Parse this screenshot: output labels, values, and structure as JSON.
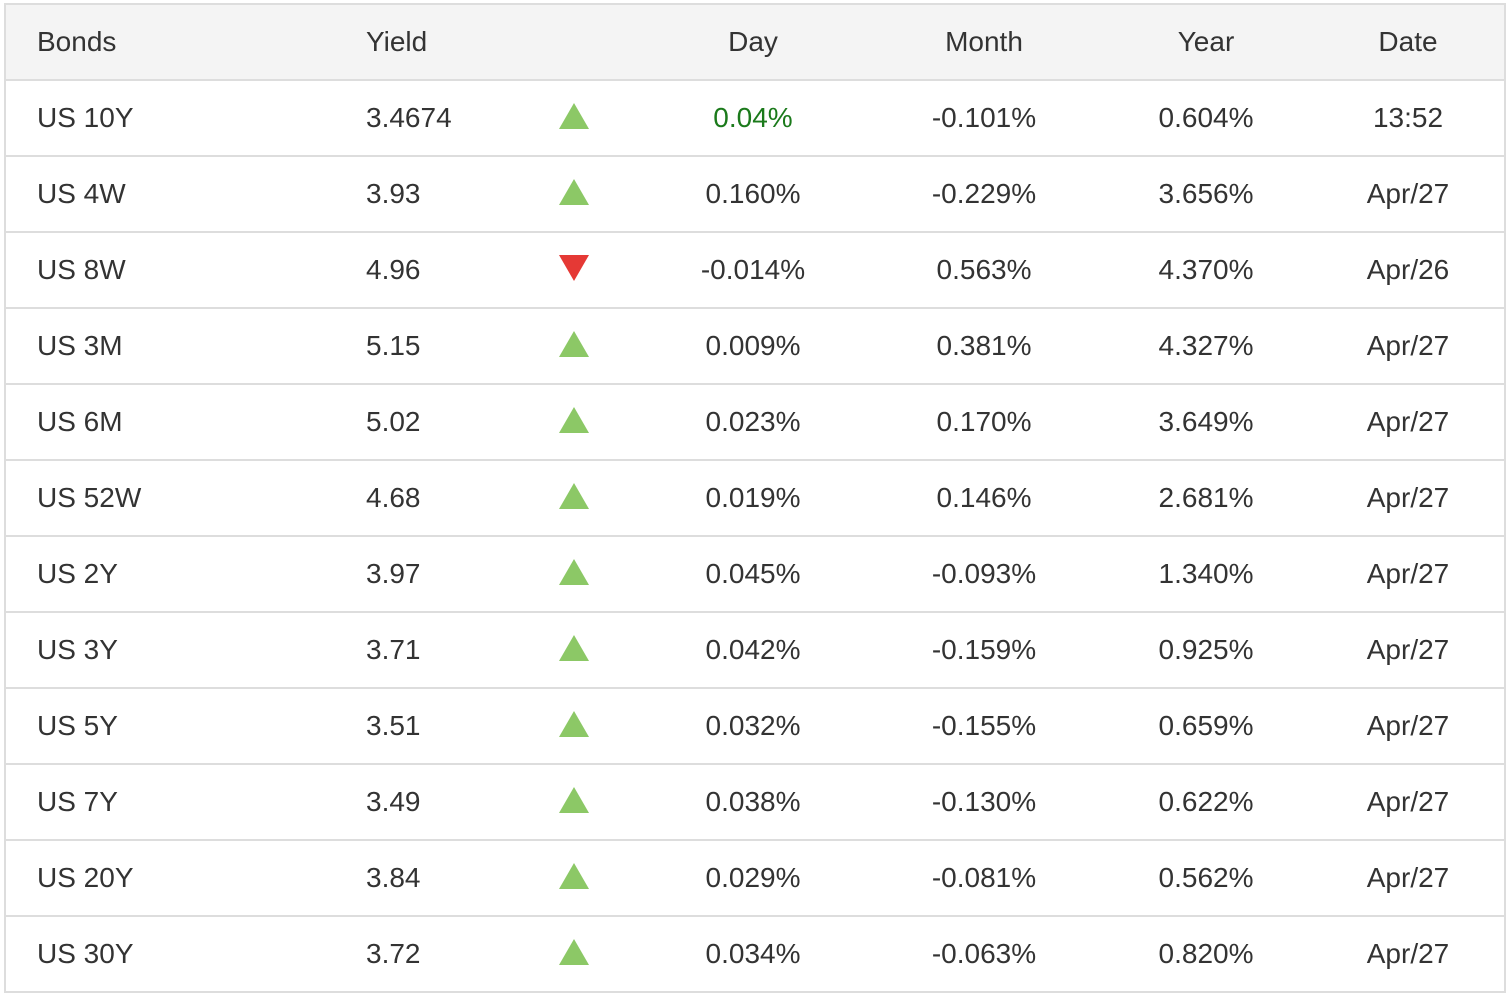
{
  "headers": {
    "bonds": "Bonds",
    "yield": "Yield",
    "day": "Day",
    "month": "Month",
    "year": "Year",
    "date": "Date"
  },
  "colors": {
    "up": "#8cc866",
    "down": "#e53935",
    "highlight_text": "#1b7a1b"
  },
  "rows": [
    {
      "bond": "US 10Y",
      "yield": "3.4674",
      "direction": "up",
      "day": "0.04%",
      "month": "-0.101%",
      "year": "0.604%",
      "date": "13:52"
    },
    {
      "bond": "US 4W",
      "yield": "3.93",
      "direction": "up",
      "day": "0.160%",
      "month": "-0.229%",
      "year": "3.656%",
      "date": "Apr/27"
    },
    {
      "bond": "US 8W",
      "yield": "4.96",
      "direction": "down",
      "day": "-0.014%",
      "month": "0.563%",
      "year": "4.370%",
      "date": "Apr/26"
    },
    {
      "bond": "US 3M",
      "yield": "5.15",
      "direction": "up",
      "day": "0.009%",
      "month": "0.381%",
      "year": "4.327%",
      "date": "Apr/27"
    },
    {
      "bond": "US 6M",
      "yield": "5.02",
      "direction": "up",
      "day": "0.023%",
      "month": "0.170%",
      "year": "3.649%",
      "date": "Apr/27"
    },
    {
      "bond": "US 52W",
      "yield": "4.68",
      "direction": "up",
      "day": "0.019%",
      "month": "0.146%",
      "year": "2.681%",
      "date": "Apr/27"
    },
    {
      "bond": "US 2Y",
      "yield": "3.97",
      "direction": "up",
      "day": "0.045%",
      "month": "-0.093%",
      "year": "1.340%",
      "date": "Apr/27"
    },
    {
      "bond": "US 3Y",
      "yield": "3.71",
      "direction": "up",
      "day": "0.042%",
      "month": "-0.159%",
      "year": "0.925%",
      "date": "Apr/27"
    },
    {
      "bond": "US 5Y",
      "yield": "3.51",
      "direction": "up",
      "day": "0.032%",
      "month": "-0.155%",
      "year": "0.659%",
      "date": "Apr/27"
    },
    {
      "bond": "US 7Y",
      "yield": "3.49",
      "direction": "up",
      "day": "0.038%",
      "month": "-0.130%",
      "year": "0.622%",
      "date": "Apr/27"
    },
    {
      "bond": "US 20Y",
      "yield": "3.84",
      "direction": "up",
      "day": "0.029%",
      "month": "-0.081%",
      "year": "0.562%",
      "date": "Apr/27"
    },
    {
      "bond": "US 30Y",
      "yield": "3.72",
      "direction": "up",
      "day": "0.034%",
      "month": "-0.063%",
      "year": "0.820%",
      "date": "Apr/27"
    }
  ]
}
